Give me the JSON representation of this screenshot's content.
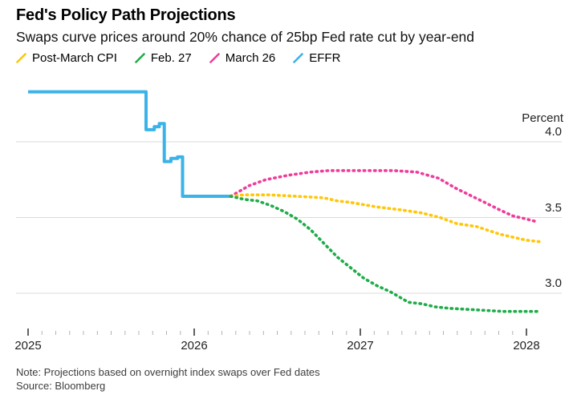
{
  "header": {
    "title": "Fed's Policy Path Projections",
    "subtitle": "Swaps curve prices around 20% chance of 25bp Fed rate cut by year-end"
  },
  "legend": {
    "items": [
      {
        "key": "post-march-cpi",
        "label": "Post-March CPI",
        "color": "#FFC709"
      },
      {
        "key": "feb-27",
        "label": "Feb. 27",
        "color": "#1FAC49"
      },
      {
        "key": "march-26",
        "label": "March 26",
        "color": "#EE3D9B"
      },
      {
        "key": "effr",
        "label": "EFFR",
        "color": "#3BB3E9"
      }
    ]
  },
  "chart_data": {
    "type": "line",
    "ylabel": "Percent",
    "grid": "horizontal gridlines at y ticks",
    "legend_position": "top-left",
    "x_range": [
      2025.0,
      2028.17
    ],
    "y_range": [
      2.72,
      4.45
    ],
    "x_ticks": {
      "major_years": [
        2025,
        2026,
        2027,
        2028
      ],
      "labels": [
        "2025",
        "2026",
        "2027",
        "2028"
      ],
      "minor_interval_months": 1
    },
    "y_ticks": {
      "values": [
        4.0,
        3.5,
        3.0
      ],
      "labels": [
        "4.0",
        "3.5",
        "3.0"
      ]
    },
    "series": [
      {
        "key": "effr",
        "name": "EFFR",
        "color": "#3BB3E9",
        "style": "solid",
        "points": [
          [
            2025.0,
            4.33
          ],
          [
            2025.71,
            4.33
          ],
          [
            2025.71,
            4.08
          ],
          [
            2025.76,
            4.08
          ],
          [
            2025.76,
            4.1
          ],
          [
            2025.79,
            4.1
          ],
          [
            2025.79,
            4.12
          ],
          [
            2025.82,
            4.12
          ],
          [
            2025.82,
            3.87
          ],
          [
            2025.86,
            3.87
          ],
          [
            2025.86,
            3.89
          ],
          [
            2025.9,
            3.89
          ],
          [
            2025.9,
            3.9
          ],
          [
            2025.93,
            3.9
          ],
          [
            2025.93,
            3.64
          ],
          [
            2026.22,
            3.64
          ]
        ]
      },
      {
        "key": "march-26",
        "name": "March 26",
        "color": "#EE3D9B",
        "style": "dotted",
        "points": [
          [
            2026.22,
            3.64
          ],
          [
            2026.33,
            3.71
          ],
          [
            2026.43,
            3.75
          ],
          [
            2026.57,
            3.78
          ],
          [
            2026.7,
            3.8
          ],
          [
            2026.81,
            3.81
          ],
          [
            2027.0,
            3.81
          ],
          [
            2027.2,
            3.81
          ],
          [
            2027.34,
            3.8
          ],
          [
            2027.47,
            3.76
          ],
          [
            2027.58,
            3.69
          ],
          [
            2027.73,
            3.61
          ],
          [
            2027.84,
            3.55
          ],
          [
            2027.92,
            3.51
          ],
          [
            2028.0,
            3.49
          ],
          [
            2028.07,
            3.47
          ]
        ]
      },
      {
        "key": "post-march-cpi",
        "name": "Post-March CPI",
        "color": "#FFC709",
        "style": "dotted",
        "points": [
          [
            2026.22,
            3.64
          ],
          [
            2026.3,
            3.65
          ],
          [
            2026.45,
            3.65
          ],
          [
            2026.62,
            3.64
          ],
          [
            2026.78,
            3.63
          ],
          [
            2026.86,
            3.61
          ],
          [
            2026.94,
            3.6
          ],
          [
            2027.1,
            3.57
          ],
          [
            2027.25,
            3.55
          ],
          [
            2027.37,
            3.53
          ],
          [
            2027.48,
            3.5
          ],
          [
            2027.58,
            3.46
          ],
          [
            2027.7,
            3.44
          ],
          [
            2027.84,
            3.39
          ],
          [
            2027.92,
            3.37
          ],
          [
            2028.0,
            3.35
          ],
          [
            2028.08,
            3.34
          ]
        ]
      },
      {
        "key": "feb-27",
        "name": "Feb. 27",
        "color": "#1FAC49",
        "style": "dotted",
        "points": [
          [
            2026.22,
            3.64
          ],
          [
            2026.3,
            3.62
          ],
          [
            2026.38,
            3.61
          ],
          [
            2026.46,
            3.58
          ],
          [
            2026.54,
            3.54
          ],
          [
            2026.62,
            3.49
          ],
          [
            2026.7,
            3.42
          ],
          [
            2026.78,
            3.33
          ],
          [
            2026.86,
            3.24
          ],
          [
            2026.94,
            3.17
          ],
          [
            2027.02,
            3.1
          ],
          [
            2027.1,
            3.05
          ],
          [
            2027.18,
            3.01
          ],
          [
            2027.29,
            2.94
          ],
          [
            2027.37,
            2.93
          ],
          [
            2027.45,
            2.91
          ],
          [
            2027.54,
            2.9
          ],
          [
            2027.7,
            2.89
          ],
          [
            2027.86,
            2.88
          ],
          [
            2028.02,
            2.88
          ],
          [
            2028.08,
            2.88
          ]
        ]
      }
    ]
  },
  "footer": {
    "note": "Note: Projections based on overnight index swaps over Fed dates",
    "source": "Source: Bloomberg"
  }
}
